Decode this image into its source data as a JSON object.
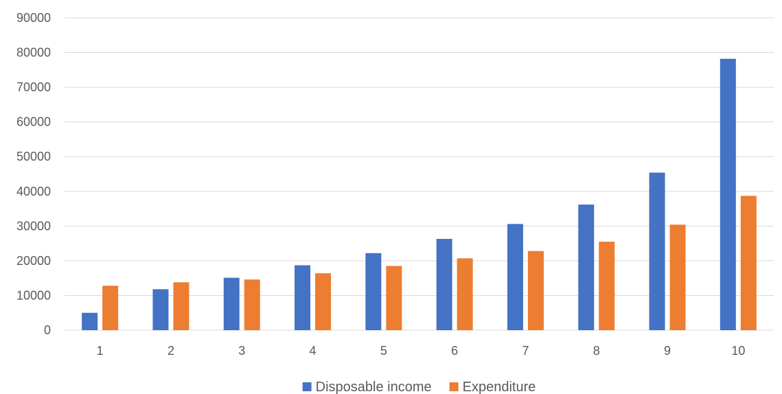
{
  "chart_data": {
    "type": "bar",
    "categories": [
      "1",
      "2",
      "3",
      "4",
      "5",
      "6",
      "7",
      "8",
      "9",
      "10"
    ],
    "series": [
      {
        "name": "Disposable income",
        "color": "#4472C4",
        "values": [
          5000,
          11800,
          15100,
          18700,
          22200,
          26300,
          30600,
          36200,
          45400,
          78200
        ]
      },
      {
        "name": "Expenditure",
        "color": "#ED7D31",
        "values": [
          12800,
          13800,
          14600,
          16400,
          18500,
          20700,
          22800,
          25500,
          30400,
          38700
        ]
      }
    ],
    "y_ticks": [
      "0",
      "10000",
      "20000",
      "30000",
      "40000",
      "50000",
      "60000",
      "70000",
      "80000",
      "90000"
    ],
    "ylim": [
      0,
      90000
    ],
    "grid": true,
    "legend_position": "bottom",
    "title": "",
    "xlabel": "",
    "ylabel": ""
  }
}
